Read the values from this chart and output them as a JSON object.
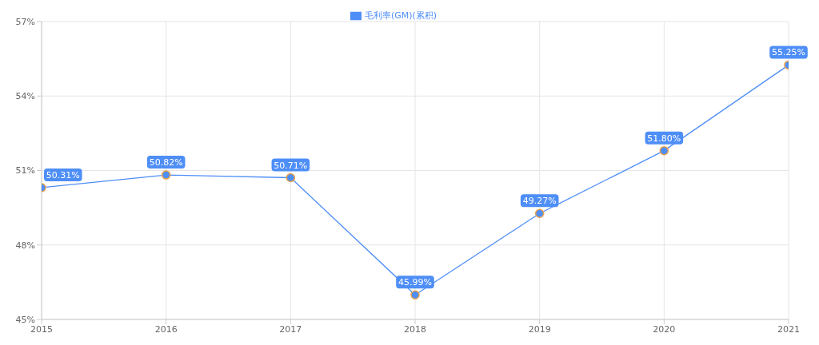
{
  "chart_data": {
    "type": "line",
    "x": [
      2015,
      2016,
      2017,
      2018,
      2019,
      2020,
      2021
    ],
    "xlim": [
      2015,
      2021
    ],
    "xticks": [
      2015,
      2016,
      2017,
      2018,
      2019,
      2020,
      2021
    ],
    "ylim": [
      45,
      57
    ],
    "yticks": [
      {
        "value": 45,
        "label": "45%"
      },
      {
        "value": 48,
        "label": "48%"
      },
      {
        "value": 51,
        "label": "51%"
      },
      {
        "value": 54,
        "label": "54%"
      },
      {
        "value": 57,
        "label": "57%"
      }
    ],
    "series": [
      {
        "name": "毛利率(GM)(累积)",
        "color": "#4e8ef7",
        "values": [
          50.31,
          50.82,
          50.71,
          45.99,
          49.27,
          51.8,
          55.25
        ],
        "value_labels": [
          "50.31%",
          "50.82%",
          "50.71%",
          "45.99%",
          "49.27%",
          "51.80%",
          "55.25%"
        ]
      }
    ],
    "grid": true,
    "legend": "top",
    "marker": "circle",
    "line_style": "solid"
  }
}
